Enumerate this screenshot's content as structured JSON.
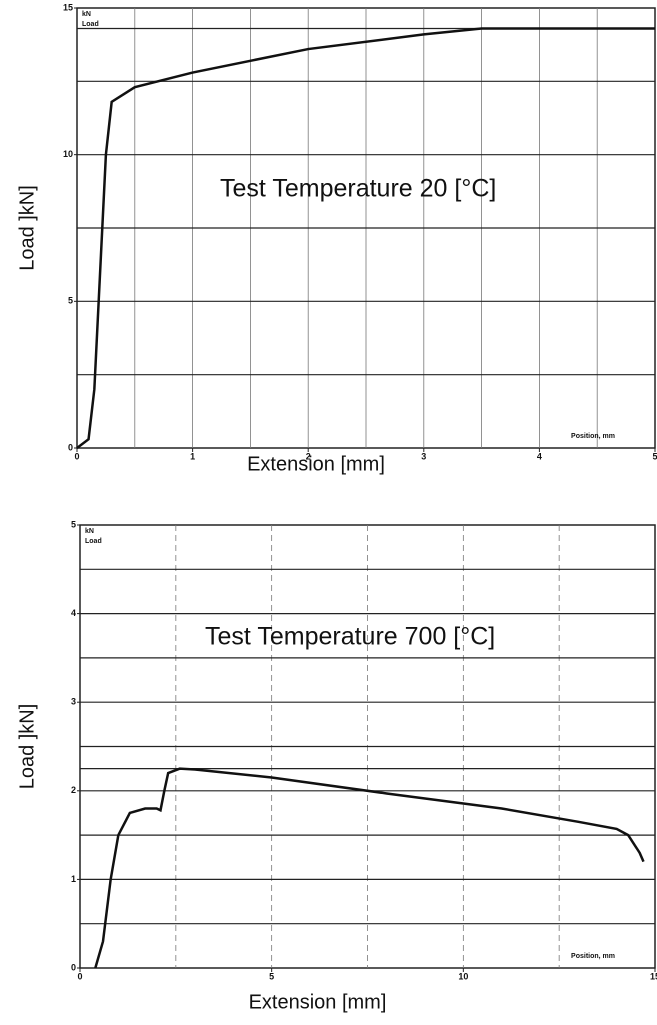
{
  "chart_data": [
    {
      "type": "line",
      "annotation": "Test Temperature 20 [°C]",
      "corner_unit": "kN",
      "corner_label": "Load",
      "position_label": "Position, mm",
      "xlabel": "Extension [mm]",
      "ylabel": "Load ]kN]",
      "xlim": [
        0,
        5
      ],
      "ylim": [
        0,
        15
      ],
      "xticks": [
        0,
        1,
        2,
        3,
        4,
        5
      ],
      "yticks": [
        0,
        5,
        10,
        15
      ],
      "xgrid": [
        0.5,
        1,
        1.5,
        2,
        2.5,
        3,
        3.5,
        4,
        4.5
      ],
      "ygrid": [
        2.5,
        5,
        7.5,
        10,
        12.5,
        14.3
      ],
      "series": [
        {
          "name": "Load",
          "color": "#111",
          "x": [
            0,
            0.1,
            0.15,
            0.2,
            0.25,
            0.3,
            0.5,
            1,
            2,
            3,
            3.5,
            4,
            5
          ],
          "values": [
            0,
            0.3,
            2,
            6,
            10,
            11.8,
            12.3,
            12.8,
            13.6,
            14.1,
            14.3,
            14.3,
            14.3
          ]
        }
      ]
    },
    {
      "type": "line",
      "annotation": "Test Temperature 700 [°C]",
      "corner_unit": "kN",
      "corner_label": "Load",
      "position_label": "Position, mm",
      "xlabel": "Extension [mm]",
      "ylabel": "Load ]kN]",
      "xlim": [
        0,
        15
      ],
      "ylim": [
        0,
        5
      ],
      "xticks": [
        0,
        5,
        10,
        15
      ],
      "yticks": [
        0,
        1,
        2,
        3,
        4,
        5
      ],
      "xgrid": [
        2.5,
        5,
        7.5,
        10,
        12.5
      ],
      "ygrid": [
        0.5,
        1,
        1.5,
        2,
        2.25,
        2.5,
        3,
        3.5,
        4,
        4.5
      ],
      "series": [
        {
          "name": "Load",
          "color": "#111",
          "x": [
            0.4,
            0.6,
            0.8,
            1.0,
            1.3,
            1.7,
            2.0,
            2.1,
            2.2,
            2.3,
            2.6,
            3,
            5,
            8,
            11,
            13,
            14,
            14.3,
            14.6,
            14.7
          ],
          "values": [
            0,
            0.3,
            1.0,
            1.5,
            1.75,
            1.8,
            1.8,
            1.78,
            2.0,
            2.2,
            2.25,
            2.24,
            2.15,
            1.97,
            1.8,
            1.65,
            1.57,
            1.5,
            1.3,
            1.2
          ]
        }
      ]
    }
  ]
}
